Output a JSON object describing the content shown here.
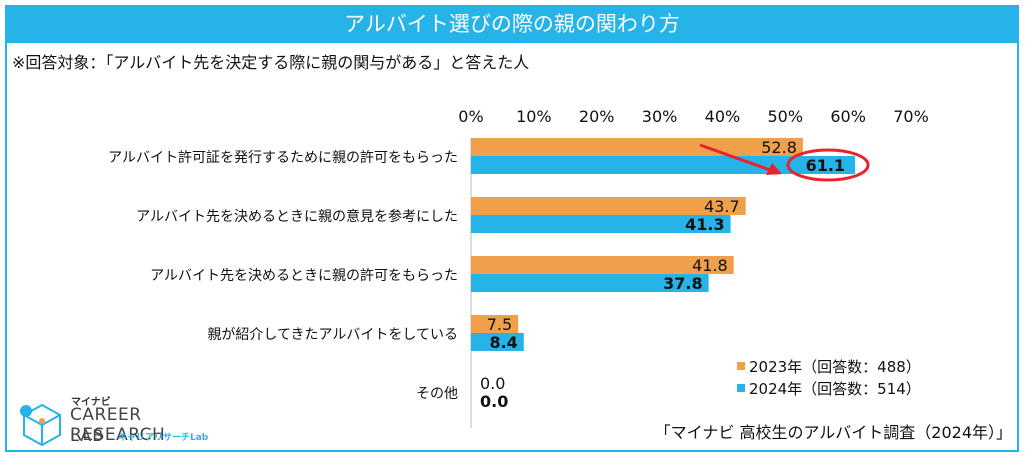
{
  "title": "アルバイト選びの際の親の関わり方",
  "subtitle": "※回答対象：「アルバイト先を決定する際に親の関与がある」と答えた人",
  "source": "「マイナビ 高校生のアルバイト調査（2024年）」",
  "logo": {
    "brand": "マイナビ",
    "line1": "CAREER RESEARCH",
    "line2": "LAB",
    "line3": "キャリアリサーチLab"
  },
  "colors": {
    "accent": "#26b3e8",
    "series_2023": "#f0a04b",
    "series_2024": "#26b3e8",
    "highlight": "#e8242b"
  },
  "chart_data": {
    "type": "bar",
    "orientation": "horizontal",
    "categories": [
      "アルバイト許可証を発行するために親の許可をもらった",
      "アルバイト先を決めるときに親の意見を参考にした",
      "アルバイト先を決めるときに親の許可をもらった",
      "親が紹介してきたアルバイトをしている",
      "その他"
    ],
    "series": [
      {
        "name": "2023年（回答数：488）",
        "values": [
          52.8,
          43.7,
          41.8,
          7.5,
          0.0
        ]
      },
      {
        "name": "2024年（回答数：514）",
        "values": [
          61.1,
          41.3,
          37.8,
          8.4,
          0.0
        ]
      }
    ],
    "xticks": [
      "0%",
      "10%",
      "20%",
      "30%",
      "40%",
      "50%",
      "60%",
      "70%"
    ],
    "xlim": [
      0,
      70
    ],
    "grid": false,
    "legend_position": "bottom-right",
    "highlighted_value": "61.1"
  }
}
